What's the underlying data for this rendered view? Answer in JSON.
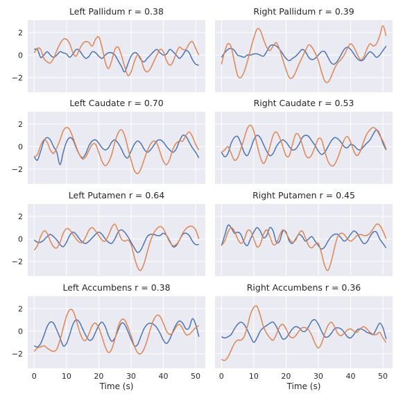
{
  "chart_data": {
    "type": "line",
    "layout": "4x2 grid",
    "xlabel": "Time (s)",
    "xlim": [
      -2,
      53
    ],
    "ylim": [
      -3.3,
      3.1
    ],
    "xticks": [
      "0",
      "10",
      "20",
      "30",
      "40",
      "50"
    ],
    "yticks": [
      "-2",
      "0",
      "2"
    ],
    "grid": true,
    "colors": {
      "series_a": "#4c72b0",
      "series_b": "#dd8452",
      "panel_bg": "#eaeaf2",
      "grid": "#ffffff"
    },
    "panels": [
      {
        "title": "Left Pallidum r = 0.38",
        "series": [
          {
            "values": [
              0.5,
              0.5,
              -0.2,
              0,
              0.3,
              0,
              -0.2,
              0,
              0.3,
              0.2,
              0.1,
              -0.2,
              0.1,
              0.5,
              0.4,
              0,
              -0.3,
              -0.1,
              0.3,
              0.2,
              -0.1,
              -0.3,
              0,
              0.2,
              0.2,
              0,
              -0.5,
              -1,
              -1.5,
              -0.8,
              -0.1,
              0.2,
              0.1,
              -0.4,
              -0.6,
              -0.3,
              0,
              0.3,
              0.5,
              0.2,
              0,
              0.1,
              0.5,
              0.3,
              0,
              -0.3,
              0,
              0.4,
              0.2,
              -0.4,
              -0.8,
              -0.9
            ]
          },
          {
            "values": [
              0.2,
              0.6,
              0.5,
              -0.3,
              -0.6,
              -0.7,
              -0.3,
              0.4,
              1,
              1.4,
              1.4,
              1,
              0.2,
              -0.1,
              0.5,
              1,
              1.2,
              1.1,
              0.8,
              1.4,
              1.6,
              0.7,
              -0.6,
              -1.2,
              -0.5,
              0.5,
              0.7,
              0,
              -1,
              -1.8,
              -1.5,
              -0.6,
              0,
              -0.3,
              -1.2,
              -1.5,
              -1.2,
              -0.6,
              0,
              0.5,
              0.3,
              -0.5,
              -0.9,
              -0.6,
              0.2,
              0.7,
              0.5,
              0.5,
              1,
              1.2,
              0.6,
              0
            ]
          }
        ]
      },
      {
        "title": "Right Pallidum r = 0.39",
        "series": [
          {
            "values": [
              -0.2,
              0.2,
              0.5,
              0.6,
              0.4,
              0,
              -0.1,
              -0.2,
              0,
              0,
              0.1,
              0.1,
              0,
              -0.1,
              0.3,
              0.8,
              0.9,
              0.8,
              0.5,
              0.1,
              -0.3,
              -0.5,
              -0.3,
              -0.1,
              0.2,
              0.5,
              0.3,
              -0.2,
              -0.4,
              -0.3,
              0,
              0.3,
              0.3,
              -0.2,
              -0.7,
              -0.8,
              -0.5,
              0,
              0.5,
              0.7,
              0.5,
              0.1,
              -0.3,
              -0.5,
              -0.4,
              0,
              0.3,
              0.1,
              -0.2,
              0,
              0.4,
              0.8
            ]
          },
          {
            "values": [
              -0.8,
              0.3,
              1,
              0.7,
              -0.6,
              -1.8,
              -2,
              -1.5,
              -0.6,
              0.5,
              1.5,
              2.3,
              2.2,
              1.4,
              0.7,
              0.4,
              0.8,
              1.1,
              0.5,
              -0.4,
              -1.3,
              -2,
              -2,
              -1.5,
              -0.8,
              -0.2,
              0.4,
              0.9,
              0.7,
              0.2,
              -0.5,
              -1.5,
              -2.3,
              -2.4,
              -1.9,
              -1.2,
              -0.7,
              -0.4,
              0,
              0.6,
              1,
              0.7,
              0.1,
              -0.4,
              -0.2,
              0.5,
              1,
              0.8,
              1,
              1.7,
              2.6,
              1.7
            ]
          }
        ]
      },
      {
        "title": "Left Caudate r = 0.70",
        "series": [
          {
            "values": [
              -0.9,
              -1.2,
              -0.4,
              0.5,
              0.8,
              0.6,
              0,
              -0.5,
              -1.6,
              -0.5,
              0.4,
              0.8,
              0.6,
              -0.1,
              -0.7,
              -1,
              -0.6,
              0.1,
              0.5,
              0.6,
              0.3,
              -0.1,
              -0.3,
              -0.1,
              0.4,
              0.6,
              0.3,
              -0.2,
              -0.8,
              -1,
              -0.4,
              0.2,
              0.5,
              0.3,
              -0.2,
              -0.5,
              -0.3,
              0.1,
              0.5,
              0.6,
              0.4,
              0,
              -0.3,
              -0.5,
              -0.2,
              0.5,
              1,
              0.9,
              0.4,
              -0.1,
              -0.5,
              -1
            ]
          },
          {
            "values": [
              -0.9,
              -0.7,
              0.1,
              0.6,
              0.4,
              -0.3,
              -0.6,
              -0.1,
              0.6,
              1.4,
              1.7,
              1.5,
              0.8,
              0,
              -0.7,
              -1.1,
              -0.9,
              -0.3,
              0.2,
              0.2,
              -0.5,
              -1.3,
              -1.7,
              -1.4,
              -0.7,
              0.4,
              1.2,
              1.5,
              1,
              -0.1,
              -1.2,
              -2.1,
              -2.4,
              -2,
              -1.2,
              -0.4,
              0.2,
              0.5,
              0.3,
              -0.5,
              -1.3,
              -1.6,
              -1.1,
              -0.2,
              0.3,
              0.5,
              0.5,
              1,
              1.3,
              0.9,
              0.2,
              -0.3
            ]
          }
        ]
      },
      {
        "title": "Right Caudate r = 0.53",
        "series": [
          {
            "values": [
              -0.5,
              -0.9,
              -0.6,
              0.3,
              0.8,
              0.9,
              0.3,
              -0.5,
              -0.8,
              -0.2,
              0.6,
              1,
              0.8,
              0.2,
              -0.4,
              -0.8,
              -0.6,
              0,
              0.4,
              0.6,
              0.4,
              0,
              -0.3,
              -0.2,
              0.2,
              0.8,
              1,
              0.9,
              0.5,
              0.1,
              -0.4,
              -0.7,
              -0.5,
              0,
              0.5,
              0.8,
              0.7,
              0.4,
              0,
              -0.1,
              0.2,
              0.1,
              -0.2,
              -0.3,
              0,
              0.3,
              0.6,
              1.1,
              1.5,
              1.1,
              0.3,
              -0.3
            ]
          },
          {
            "values": [
              -0.5,
              -0.3,
              0,
              -0.6,
              -1.2,
              -1,
              -0.2,
              0.7,
              1.6,
              1.9,
              1.4,
              0.2,
              -0.9,
              -1.5,
              -1,
              0,
              1,
              1.3,
              0.8,
              0,
              -0.8,
              -0.8,
              0.2,
              1.1,
              1,
              0.2,
              -0.7,
              -1,
              -0.7,
              0,
              0.7,
              0.6,
              -0.4,
              -1.3,
              -1.7,
              -1.6,
              -1,
              -0.2,
              0.6,
              0.9,
              0.4,
              -0.4,
              -0.8,
              -0.4,
              0.4,
              1.1,
              1.5,
              1.7,
              1.5,
              1,
              0.5,
              -0.2
            ]
          }
        ]
      },
      {
        "title": "Left Putamen r = 0.64",
        "series": [
          {
            "values": [
              -0.1,
              -0.3,
              -0.3,
              -0.1,
              0.2,
              0.4,
              0.2,
              -0.1,
              -0.5,
              -0.7,
              -0.3,
              0.3,
              0.6,
              0.4,
              0,
              -0.3,
              -0.4,
              -0.2,
              0.1,
              0.4,
              0.6,
              0.4,
              0,
              -0.3,
              -0.4,
              0,
              0.6,
              0.8,
              0.6,
              0.2,
              -0.3,
              -0.8,
              -1.2,
              -1,
              -0.4,
              0.2,
              0.4,
              0.4,
              0.3,
              0.3,
              0.5,
              0.3,
              -0.2,
              -0.7,
              -0.6,
              -0.1,
              0.4,
              0.5,
              0.3,
              -0.2,
              -0.5,
              -0.5
            ]
          },
          {
            "values": [
              -1,
              -0.6,
              0.2,
              0.7,
              0.5,
              -0.2,
              -0.7,
              -0.8,
              -0.3,
              0.5,
              0.9,
              0.8,
              0.4,
              0,
              -0.3,
              -0.3,
              0.2,
              0.8,
              1,
              0.7,
              0.3,
              -0.1,
              -0.2,
              0.3,
              1,
              1.3,
              0.7,
              0,
              -0.2,
              -0.1,
              -0.5,
              -1.6,
              -2.5,
              -2.8,
              -2.2,
              -1.2,
              -0.2,
              0.5,
              0.9,
              1.1,
              0.9,
              0.3,
              -0.3,
              -0.6,
              -0.5,
              -0.1,
              0.5,
              0.9,
              1.1,
              1.1,
              0.8,
              0
            ]
          }
        ]
      },
      {
        "title": "Right Putamen r = 0.45",
        "series": [
          {
            "values": [
              -0.6,
              0.3,
              1.2,
              1,
              0.5,
              0.6,
              0.4,
              -0.3,
              -0.6,
              0,
              0.6,
              1,
              0.7,
              0.1,
              0.3,
              1,
              0.7,
              -0.3,
              -0.2,
              0.7,
              0.6,
              -0.2,
              -0.4,
              0,
              0.4,
              0.2,
              -0.2,
              0,
              0.2,
              -0.2,
              -0.6,
              -0.9,
              -0.7,
              -0.2,
              0.2,
              0.4,
              0.4,
              0.1,
              -0.2,
              0,
              0.4,
              0.7,
              0.5,
              0,
              -0.4,
              -0.3,
              0.2,
              0.6,
              0.6,
              0,
              -0.4,
              -0.8
            ]
          },
          {
            "values": [
              -0.6,
              -0.2,
              0.6,
              1,
              0.7,
              0,
              -0.4,
              -0.1,
              0.7,
              0.7,
              0,
              -0.7,
              -0.5,
              0.4,
              0.8,
              0.2,
              -0.5,
              -0.4,
              0.3,
              0.8,
              0.5,
              0,
              -0.3,
              -0.1,
              0.5,
              0.7,
              0.1,
              -0.6,
              -0.8,
              -0.5,
              -0.4,
              -1.3,
              -2.4,
              -2.8,
              -2,
              -0.8,
              0.2,
              0.5,
              0.4,
              0,
              -0.2,
              0,
              0.3,
              0.4,
              0.3,
              0.3,
              0.5,
              0.9,
              1.3,
              1.2,
              0.7,
              0
            ]
          }
        ]
      },
      {
        "title": "Left Accumbens r = 0.38",
        "series": [
          {
            "values": [
              -1.3,
              -1.4,
              -1.1,
              -0.4,
              0.4,
              0.8,
              0.7,
              0.1,
              -0.6,
              -1.3,
              -1.1,
              -0.3,
              0.6,
              1,
              0.8,
              0.2,
              -0.4,
              -0.8,
              -0.7,
              -0.1,
              0.5,
              0.8,
              0.4,
              -0.4,
              -0.9,
              -0.6,
              0.1,
              0.7,
              0.6,
              0,
              -0.7,
              -1.3,
              -1.2,
              -0.5,
              0.2,
              0.6,
              0.7,
              0.6,
              0.3,
              -0.2,
              -0.8,
              -1.1,
              -0.7,
              0,
              0.6,
              0.9,
              0.7,
              0.2,
              0.3,
              1.1,
              0.6,
              -0.5
            ]
          },
          {
            "values": [
              -1.8,
              -1.5,
              -1.4,
              -1.3,
              -1.5,
              -1.7,
              -1.8,
              -1.6,
              -0.8,
              0.3,
              1.3,
              1.9,
              1.8,
              1,
              0,
              -0.7,
              -0.8,
              -0.2,
              0.5,
              0.7,
              0.3,
              -0.5,
              -1.4,
              -1.9,
              -1.6,
              -0.7,
              0.4,
              1,
              1,
              0.4,
              -0.4,
              -1.3,
              -1.9,
              -2,
              -1.6,
              -0.8,
              0.2,
              1,
              1.4,
              1.3,
              0.7,
              0,
              -0.3,
              -0.1,
              0.4,
              0.6,
              0.2,
              -0.3,
              -0.3,
              0,
              0.3,
              0.5
            ]
          }
        ]
      },
      {
        "title": "Right Accumbens r = 0.36",
        "series": [
          {
            "values": [
              -0.5,
              -0.6,
              -0.5,
              -0.3,
              0.2,
              0.6,
              0.8,
              0.6,
              0.1,
              -0.5,
              -1,
              -0.6,
              0,
              0.3,
              0.5,
              0.7,
              0.8,
              0.4,
              -0.2,
              -0.7,
              -0.6,
              -0.2,
              0.2,
              0.4,
              0.3,
              0,
              0,
              0.4,
              0.9,
              1,
              0.6,
              0,
              -0.5,
              -0.5,
              -0.2,
              0.2,
              0.3,
              0.2,
              -0.1,
              -0.5,
              -0.6,
              -0.3,
              0.1,
              0.2,
              0.1,
              -0.1,
              -0.2,
              -0.3,
              0.2,
              0.7,
              0.3,
              -0.7
            ]
          },
          {
            "values": [
              -2.5,
              -2.6,
              -2.3,
              -1.7,
              -1.1,
              -0.8,
              -0.8,
              -0.5,
              0.4,
              1.5,
              2.1,
              2.2,
              1.4,
              0.4,
              -0.2,
              -0.6,
              -0.8,
              -0.3,
              0.4,
              0.6,
              0.2,
              -0.4,
              -0.6,
              -0.4,
              0,
              0.3,
              0.3,
              0.1,
              -0.4,
              -1.1,
              -1.5,
              -1.1,
              -0.2,
              0.5,
              0.8,
              0.4,
              -0.2,
              -0.4,
              -0.2,
              0.1,
              0.2,
              0,
              -0.1,
              0.2,
              0.4,
              0.2,
              -0.1,
              -0.3,
              -0.3,
              -0.1,
              -0.6,
              -1
            ]
          }
        ]
      }
    ]
  }
}
